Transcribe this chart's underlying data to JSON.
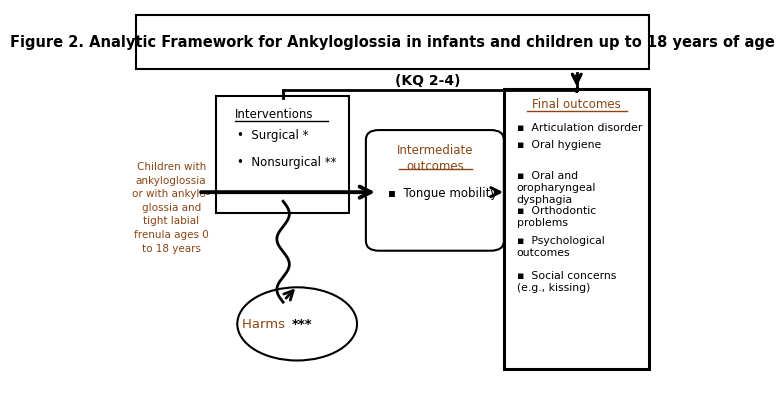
{
  "title": "Figure 2. Analytic Framework for Ankyloglossia in infants and children up to 18 years of age",
  "title_fontsize": 10.5,
  "title_color": "#000000",
  "background_color": "#ffffff",
  "left_label_lines": [
    "Children with",
    "ankyloglossia",
    "or with ankylo-",
    "glossia and",
    "tight labial",
    "frenula ages 0",
    "to 18 years"
  ],
  "left_label_color": "#8B4513",
  "interventions_title": "Interventions",
  "interventions_items": [
    "Surgical *",
    "Nonsurgical **"
  ],
  "intermediate_title": "Intermediate\noutcomes",
  "intermediate_items": [
    "Tongue mobility"
  ],
  "final_title": "Final outcomes",
  "final_items": [
    "Articulation disorder",
    "Oral hygiene",
    "Oral and\noropharyngeal\ndysphagia",
    "Orthodontic\nproblems",
    "Psychological\noutcomes",
    "Social concerns\n(e.g., kissing)"
  ],
  "harms_label_orange": "Harms ",
  "harms_label_black": "***",
  "harms_color": "#8B4513",
  "kq_label": "(KQ 2-4)",
  "text_color_orange": "#8B4513",
  "text_color_black": "#000000",
  "box_edge_color": "#000000",
  "arrow_color": "#000000"
}
